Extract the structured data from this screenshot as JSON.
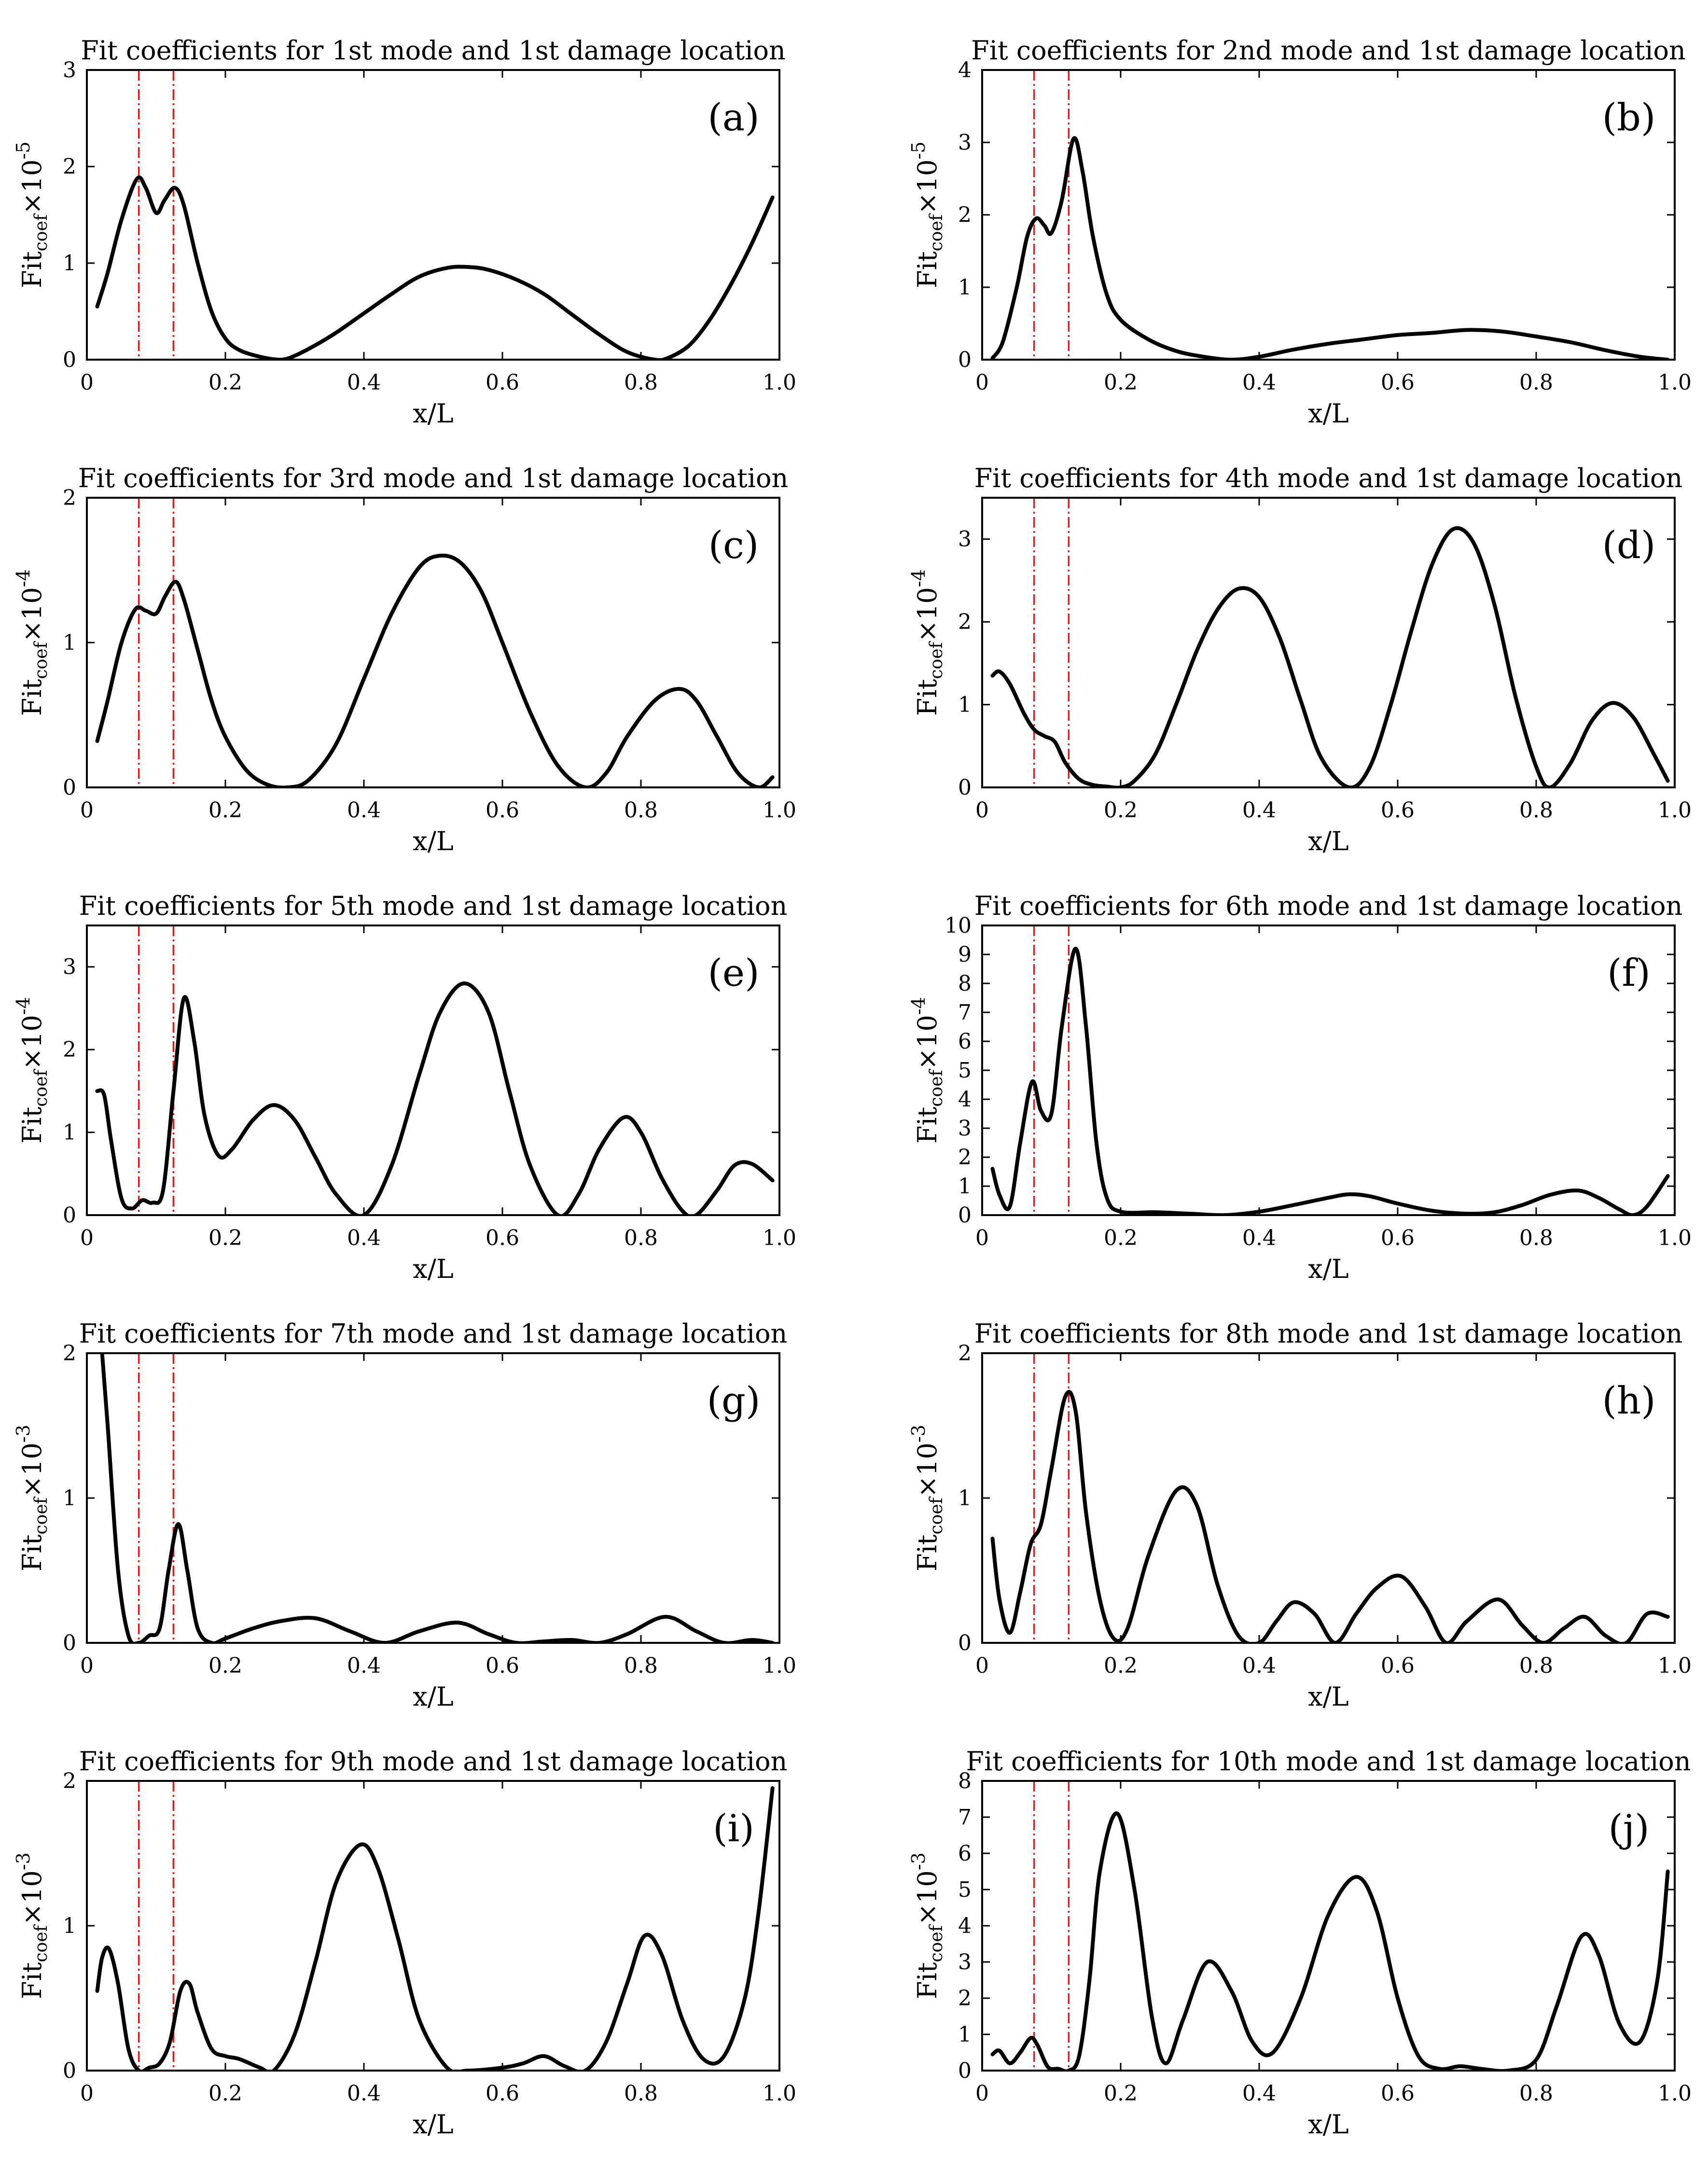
{
  "figure": {
    "xlabel": "x/L",
    "ylabel_prefix": "Fit",
    "ylabel_sub": "coef",
    "ylabel_times": "×10",
    "damage_markers": [
      0.075,
      0.125
    ],
    "colors": {
      "curve": "#000000",
      "marker": "#e31a1c",
      "axis": "#000000"
    }
  },
  "chart_data": [
    {
      "type": "line",
      "panel_label": "(a)",
      "title": "Fit coefficients for 1st mode and 1st damage location",
      "exponent": "-5",
      "xlim": [
        0,
        1
      ],
      "ylim": [
        0,
        3
      ],
      "xticks": [
        "0",
        "0.2",
        "0.4",
        "0.6",
        "0.8",
        "1.0"
      ],
      "yticks": [
        "0",
        "1",
        "2",
        "3"
      ],
      "x": [
        0.015,
        0.03,
        0.05,
        0.072,
        0.085,
        0.1,
        0.112,
        0.127,
        0.14,
        0.16,
        0.18,
        0.2,
        0.22,
        0.25,
        0.28,
        0.3,
        0.33,
        0.36,
        0.4,
        0.44,
        0.48,
        0.52,
        0.55,
        0.58,
        0.62,
        0.66,
        0.7,
        0.74,
        0.78,
        0.82,
        0.84,
        0.87,
        0.9,
        0.93,
        0.96,
        0.99
      ],
      "y": [
        0.55,
        0.9,
        1.45,
        1.87,
        1.78,
        1.52,
        1.65,
        1.78,
        1.6,
        1.0,
        0.5,
        0.22,
        0.1,
        0.03,
        0.0,
        0.04,
        0.15,
        0.28,
        0.48,
        0.68,
        0.86,
        0.95,
        0.96,
        0.93,
        0.83,
        0.68,
        0.47,
        0.26,
        0.08,
        0.0,
        0.02,
        0.15,
        0.42,
        0.78,
        1.2,
        1.68
      ]
    },
    {
      "type": "line",
      "panel_label": "(b)",
      "title": "Fit coefficients for 2nd mode and 1st damage location",
      "exponent": "-5",
      "xlim": [
        0,
        1
      ],
      "ylim": [
        0,
        4
      ],
      "xticks": [
        "0",
        "0.2",
        "0.4",
        "0.6",
        "0.8",
        "1.0"
      ],
      "yticks": [
        "0",
        "1",
        "2",
        "3",
        "4"
      ],
      "x": [
        0.015,
        0.03,
        0.05,
        0.065,
        0.078,
        0.09,
        0.1,
        0.115,
        0.132,
        0.145,
        0.16,
        0.18,
        0.2,
        0.24,
        0.28,
        0.32,
        0.36,
        0.4,
        0.45,
        0.5,
        0.55,
        0.6,
        0.65,
        0.7,
        0.75,
        0.8,
        0.85,
        0.9,
        0.95,
        0.99
      ],
      "y": [
        0.02,
        0.25,
        1.0,
        1.7,
        1.95,
        1.85,
        1.75,
        2.2,
        3.05,
        2.6,
        1.7,
        0.9,
        0.55,
        0.28,
        0.12,
        0.04,
        0.0,
        0.04,
        0.14,
        0.22,
        0.28,
        0.34,
        0.37,
        0.41,
        0.39,
        0.32,
        0.24,
        0.13,
        0.04,
        0.0
      ]
    },
    {
      "type": "line",
      "panel_label": "(c)",
      "title": "Fit coefficients for 3rd mode and 1st damage location",
      "exponent": "-4",
      "xlim": [
        0,
        1
      ],
      "ylim": [
        0,
        2
      ],
      "xticks": [
        "0",
        "0.2",
        "0.4",
        "0.6",
        "0.8",
        "1.0"
      ],
      "yticks": [
        "0",
        "1",
        "2"
      ],
      "x": [
        0.015,
        0.03,
        0.05,
        0.07,
        0.085,
        0.1,
        0.113,
        0.128,
        0.14,
        0.16,
        0.18,
        0.2,
        0.23,
        0.26,
        0.29,
        0.32,
        0.36,
        0.4,
        0.44,
        0.48,
        0.51,
        0.54,
        0.57,
        0.6,
        0.64,
        0.68,
        0.72,
        0.75,
        0.78,
        0.82,
        0.855,
        0.88,
        0.91,
        0.94,
        0.97,
        0.99
      ],
      "y": [
        0.32,
        0.6,
        1.0,
        1.23,
        1.22,
        1.2,
        1.32,
        1.42,
        1.3,
        0.95,
        0.6,
        0.35,
        0.12,
        0.02,
        0.0,
        0.05,
        0.3,
        0.75,
        1.2,
        1.52,
        1.6,
        1.55,
        1.35,
        1.0,
        0.52,
        0.15,
        0.0,
        0.1,
        0.35,
        0.6,
        0.68,
        0.6,
        0.35,
        0.1,
        0.0,
        0.07
      ]
    },
    {
      "type": "line",
      "panel_label": "(d)",
      "title": "Fit coefficients for 4th mode and 1st damage location",
      "exponent": "-4",
      "xlim": [
        0,
        1
      ],
      "ylim": [
        0,
        3.5
      ],
      "xticks": [
        "0",
        "0.2",
        "0.4",
        "0.6",
        "0.8",
        "1.0"
      ],
      "yticks": [
        "0",
        "1",
        "2",
        "3"
      ],
      "x": [
        0.015,
        0.025,
        0.04,
        0.06,
        0.075,
        0.09,
        0.105,
        0.12,
        0.14,
        0.16,
        0.18,
        0.2,
        0.22,
        0.25,
        0.28,
        0.31,
        0.34,
        0.37,
        0.4,
        0.43,
        0.46,
        0.49,
        0.53,
        0.56,
        0.59,
        0.62,
        0.65,
        0.68,
        0.71,
        0.74,
        0.77,
        0.8,
        0.82,
        0.85,
        0.88,
        0.91,
        0.94,
        0.97,
        0.99
      ],
      "y": [
        1.35,
        1.4,
        1.25,
        0.9,
        0.7,
        0.62,
        0.55,
        0.3,
        0.1,
        0.03,
        0.01,
        0.0,
        0.08,
        0.4,
        1.0,
        1.65,
        2.15,
        2.4,
        2.3,
        1.8,
        1.05,
        0.35,
        0.0,
        0.25,
        1.0,
        1.9,
        2.7,
        3.12,
        2.95,
        2.2,
        1.1,
        0.25,
        0.0,
        0.3,
        0.8,
        1.02,
        0.85,
        0.4,
        0.08
      ]
    },
    {
      "type": "line",
      "panel_label": "(e)",
      "title": "Fit coefficients for 5th mode and 1st damage location",
      "exponent": "-4",
      "xlim": [
        0,
        1
      ],
      "ylim": [
        0,
        3.5
      ],
      "xticks": [
        "0",
        "0.2",
        "0.4",
        "0.6",
        "0.8",
        "1.0"
      ],
      "yticks": [
        "0",
        "1",
        "2",
        "3"
      ],
      "x": [
        0.015,
        0.025,
        0.035,
        0.05,
        0.065,
        0.08,
        0.095,
        0.11,
        0.125,
        0.14,
        0.155,
        0.17,
        0.19,
        0.21,
        0.24,
        0.27,
        0.3,
        0.33,
        0.36,
        0.4,
        0.44,
        0.48,
        0.51,
        0.545,
        0.58,
        0.61,
        0.64,
        0.68,
        0.71,
        0.74,
        0.775,
        0.8,
        0.83,
        0.86,
        0.88,
        0.91,
        0.935,
        0.96,
        0.99
      ],
      "y": [
        1.5,
        1.45,
        0.9,
        0.2,
        0.08,
        0.18,
        0.15,
        0.3,
        1.5,
        2.62,
        2.1,
        1.2,
        0.72,
        0.8,
        1.15,
        1.33,
        1.15,
        0.7,
        0.25,
        0.0,
        0.6,
        1.7,
        2.45,
        2.8,
        2.45,
        1.5,
        0.6,
        0.0,
        0.25,
        0.8,
        1.18,
        1.0,
        0.45,
        0.05,
        0.0,
        0.3,
        0.6,
        0.62,
        0.42
      ]
    },
    {
      "type": "line",
      "panel_label": "(f)",
      "title": "Fit coefficients for 6th mode and 1st damage location",
      "exponent": "-4",
      "xlim": [
        0,
        1
      ],
      "ylim": [
        0,
        10
      ],
      "xticks": [
        "0",
        "0.2",
        "0.4",
        "0.6",
        "0.8",
        "1.0"
      ],
      "yticks": [
        "0",
        "1",
        "2",
        "3",
        "4",
        "5",
        "6",
        "7",
        "8",
        "9",
        "10"
      ],
      "x": [
        0.015,
        0.025,
        0.04,
        0.055,
        0.072,
        0.085,
        0.1,
        0.115,
        0.135,
        0.15,
        0.165,
        0.18,
        0.2,
        0.25,
        0.3,
        0.35,
        0.4,
        0.45,
        0.5,
        0.53,
        0.56,
        0.6,
        0.65,
        0.7,
        0.74,
        0.78,
        0.82,
        0.86,
        0.89,
        0.92,
        0.94,
        0.96,
        0.99
      ],
      "y": [
        1.6,
        0.7,
        0.3,
        2.5,
        4.6,
        3.6,
        3.5,
        6.5,
        9.2,
        6.5,
        2.5,
        0.6,
        0.12,
        0.1,
        0.05,
        0.0,
        0.12,
        0.35,
        0.6,
        0.72,
        0.65,
        0.4,
        0.15,
        0.05,
        0.1,
        0.35,
        0.7,
        0.85,
        0.6,
        0.2,
        0.0,
        0.3,
        1.35
      ]
    },
    {
      "type": "line",
      "panel_label": "(g)",
      "title": "Fit coefficients for 7th mode and 1st damage location",
      "exponent": "-3",
      "xlim": [
        0,
        1
      ],
      "ylim": [
        0,
        2
      ],
      "xticks": [
        "0",
        "0.2",
        "0.4",
        "0.6",
        "0.8",
        "1.0"
      ],
      "yticks": [
        "0",
        "1",
        "2"
      ],
      "x": [
        0.022,
        0.03,
        0.045,
        0.06,
        0.075,
        0.09,
        0.105,
        0.118,
        0.132,
        0.145,
        0.16,
        0.18,
        0.2,
        0.24,
        0.28,
        0.33,
        0.38,
        0.43,
        0.48,
        0.535,
        0.58,
        0.62,
        0.66,
        0.7,
        0.74,
        0.78,
        0.835,
        0.88,
        0.92,
        0.96,
        0.99
      ],
      "y": [
        2.0,
        1.5,
        0.5,
        0.05,
        0.0,
        0.05,
        0.1,
        0.5,
        0.82,
        0.5,
        0.1,
        0.0,
        0.03,
        0.1,
        0.15,
        0.17,
        0.08,
        0.0,
        0.08,
        0.14,
        0.06,
        0.0,
        0.01,
        0.02,
        0.0,
        0.06,
        0.18,
        0.08,
        0.0,
        0.02,
        0.0
      ]
    },
    {
      "type": "line",
      "panel_label": "(h)",
      "title": "Fit coefficients for 8th mode and 1st damage location",
      "exponent": "-3",
      "xlim": [
        0,
        1
      ],
      "ylim": [
        0,
        2
      ],
      "xticks": [
        "0",
        "0.2",
        "0.4",
        "0.6",
        "0.8",
        "1.0"
      ],
      "yticks": [
        "0",
        "1",
        "2"
      ],
      "x": [
        0.015,
        0.025,
        0.04,
        0.055,
        0.07,
        0.085,
        0.1,
        0.12,
        0.135,
        0.15,
        0.17,
        0.19,
        0.21,
        0.24,
        0.28,
        0.31,
        0.34,
        0.37,
        0.4,
        0.425,
        0.45,
        0.48,
        0.51,
        0.54,
        0.57,
        0.605,
        0.64,
        0.67,
        0.7,
        0.745,
        0.78,
        0.81,
        0.84,
        0.87,
        0.9,
        0.93,
        0.96,
        0.99
      ],
      "y": [
        0.72,
        0.3,
        0.07,
        0.35,
        0.68,
        0.82,
        1.2,
        1.7,
        1.6,
        0.9,
        0.3,
        0.03,
        0.1,
        0.6,
        1.05,
        0.95,
        0.4,
        0.05,
        0.0,
        0.15,
        0.28,
        0.2,
        0.0,
        0.2,
        0.38,
        0.46,
        0.25,
        0.0,
        0.15,
        0.3,
        0.12,
        0.0,
        0.1,
        0.18,
        0.05,
        0.0,
        0.2,
        0.18
      ]
    },
    {
      "type": "line",
      "panel_label": "(i)",
      "title": "Fit coefficients for 9th mode and 1st damage location",
      "exponent": "-3",
      "xlim": [
        0,
        1
      ],
      "ylim": [
        0,
        2
      ],
      "xticks": [
        "0",
        "0.2",
        "0.4",
        "0.6",
        "0.8",
        "1.0"
      ],
      "yticks": [
        "0",
        "1",
        "2"
      ],
      "x": [
        0.015,
        0.022,
        0.032,
        0.045,
        0.06,
        0.075,
        0.09,
        0.105,
        0.12,
        0.135,
        0.148,
        0.16,
        0.18,
        0.2,
        0.22,
        0.25,
        0.27,
        0.3,
        0.33,
        0.36,
        0.395,
        0.42,
        0.45,
        0.48,
        0.52,
        0.55,
        0.6,
        0.63,
        0.66,
        0.69,
        0.72,
        0.75,
        0.78,
        0.805,
        0.83,
        0.86,
        0.89,
        0.92,
        0.95,
        0.97,
        0.99
      ],
      "y": [
        0.55,
        0.78,
        0.84,
        0.6,
        0.15,
        0.0,
        0.02,
        0.05,
        0.2,
        0.55,
        0.6,
        0.4,
        0.15,
        0.1,
        0.08,
        0.02,
        0.0,
        0.25,
        0.75,
        1.3,
        1.56,
        1.4,
        0.9,
        0.35,
        0.02,
        0.0,
        0.02,
        0.05,
        0.1,
        0.03,
        0.0,
        0.2,
        0.6,
        0.93,
        0.8,
        0.35,
        0.08,
        0.1,
        0.5,
        1.1,
        1.95
      ]
    },
    {
      "type": "line",
      "panel_label": "(j)",
      "title": "Fit coefficients for 10th mode and 1st damage location",
      "exponent": "-3",
      "xlim": [
        0,
        1
      ],
      "ylim": [
        0,
        8
      ],
      "xticks": [
        "0",
        "0.2",
        "0.4",
        "0.6",
        "0.8",
        "1.0"
      ],
      "yticks": [
        "0",
        "1",
        "2",
        "3",
        "4",
        "5",
        "6",
        "7",
        "8"
      ],
      "x": [
        0.015,
        0.025,
        0.04,
        0.055,
        0.07,
        0.08,
        0.095,
        0.11,
        0.125,
        0.14,
        0.155,
        0.17,
        0.195,
        0.22,
        0.245,
        0.265,
        0.29,
        0.325,
        0.36,
        0.39,
        0.42,
        0.46,
        0.5,
        0.54,
        0.57,
        0.6,
        0.63,
        0.66,
        0.69,
        0.72,
        0.76,
        0.8,
        0.83,
        0.865,
        0.89,
        0.92,
        0.95,
        0.975,
        0.99
      ],
      "y": [
        0.45,
        0.55,
        0.2,
        0.5,
        0.9,
        0.7,
        0.1,
        0.05,
        0.0,
        0.4,
        2.5,
        5.5,
        7.1,
        5.0,
        1.5,
        0.2,
        1.4,
        3.0,
        2.2,
        0.8,
        0.5,
        2.0,
        4.3,
        5.35,
        4.4,
        2.0,
        0.4,
        0.05,
        0.12,
        0.05,
        0.0,
        0.3,
        1.8,
        3.7,
        3.2,
        1.3,
        0.8,
        2.5,
        5.5
      ]
    }
  ]
}
